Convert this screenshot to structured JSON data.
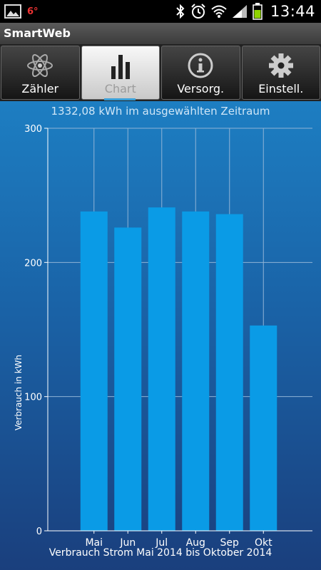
{
  "status_bar": {
    "temperature": "6°",
    "time": "13:44",
    "icons": [
      "gallery-icon",
      "bluetooth-icon",
      "alarm-icon",
      "wifi-icon",
      "signal-icon",
      "battery-icon"
    ]
  },
  "app": {
    "title": "SmartWeb"
  },
  "tabs": [
    {
      "label": "Zähler",
      "icon": "atom-icon",
      "active": false
    },
    {
      "label": "Chart",
      "icon": "bar-chart-icon",
      "active": true
    },
    {
      "label": "Versorg.",
      "icon": "info-icon",
      "active": false
    },
    {
      "label": "Einstell.",
      "icon": "gear-icon",
      "active": false
    }
  ],
  "summary": "1332,08 kWh im ausgewählten Zeitraum",
  "colors": {
    "bar": "#0a9be6",
    "accent": "#3aa0d8"
  },
  "chart_data": {
    "type": "bar",
    "title": "",
    "xlabel": "Verbrauch Strom Mai 2014 bis Oktober 2014",
    "ylabel": "Verbrauch in kWh",
    "categories": [
      "Mai",
      "Jun",
      "Jul",
      "Aug",
      "Sep",
      "Okt"
    ],
    "values": [
      238,
      226,
      241,
      238,
      236,
      153
    ],
    "ylim": [
      0,
      300
    ],
    "yticks": [
      0,
      100,
      200,
      300
    ],
    "grid": true
  }
}
